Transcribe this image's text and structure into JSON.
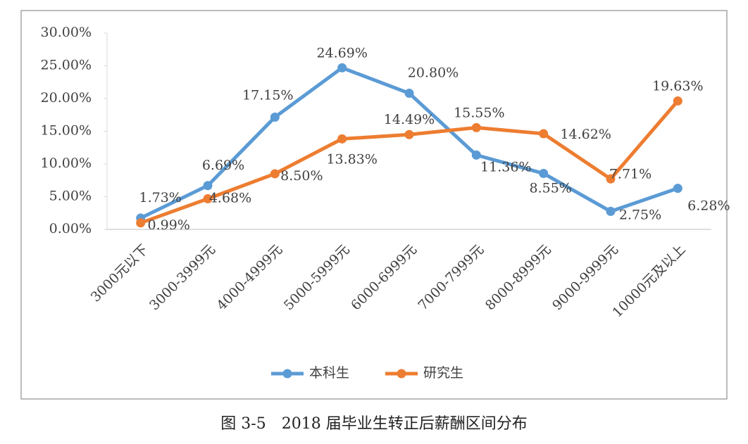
{
  "chart_data": {
    "type": "line",
    "categories": [
      "3000元以下",
      "3000-3999元",
      "4000-4999元",
      "5000-5999元",
      "6000-6999元",
      "7000-7999元",
      "8000-8999元",
      "9000-9999元",
      "10000元及以上"
    ],
    "series": [
      {
        "name": "本科生",
        "color": "#5b9bd5",
        "values": [
          1.73,
          6.69,
          17.15,
          24.69,
          20.8,
          11.36,
          8.55,
          2.75,
          6.28
        ],
        "value_labels": [
          "1.73%",
          "6.69%",
          "17.15%",
          "24.69%",
          "20.80%",
          "11.36%",
          "8.55%",
          "2.75%",
          "6.28%"
        ]
      },
      {
        "name": "研究生",
        "color": "#ed7d31",
        "values": [
          0.99,
          4.68,
          8.5,
          13.83,
          14.49,
          15.55,
          14.62,
          7.71,
          19.63
        ],
        "value_labels": [
          "0.99%",
          "4.68%",
          "8.50%",
          "13.83%",
          "14.49%",
          "15.55%",
          "14.62%",
          "7.71%",
          "19.63%"
        ]
      }
    ],
    "ylim": [
      0,
      30
    ],
    "yticks": [
      {
        "value": 0,
        "label": "0.00%"
      },
      {
        "value": 5,
        "label": "5.00%"
      },
      {
        "value": 10,
        "label": "10.00%"
      },
      {
        "value": 15,
        "label": "15.00%"
      },
      {
        "value": 20,
        "label": "20.00%"
      },
      {
        "value": 25,
        "label": "25.00%"
      },
      {
        "value": 30,
        "label": "30.00%"
      }
    ],
    "legend": "bottom",
    "caption": "图 3-5　2018 届毕业生转正后薪酬区间分布"
  }
}
